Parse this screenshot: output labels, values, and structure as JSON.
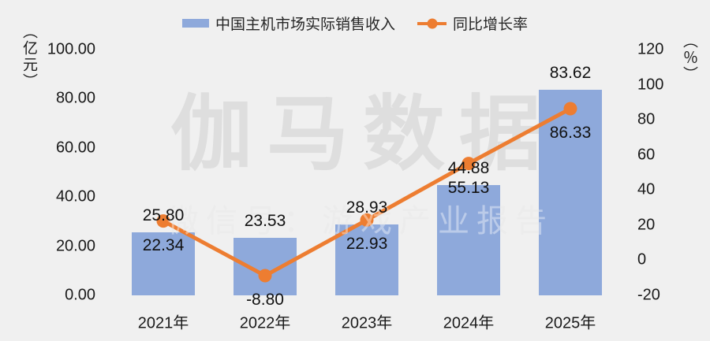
{
  "legend": {
    "revenue_label": "中国主机市场实际销售收入",
    "growth_label": "同比增长率"
  },
  "watermark": {
    "line1": "伽马数据",
    "line2": "微信号：游戏产业报告"
  },
  "colors": {
    "bar": "#8EA9DB",
    "line": "#ED7D31",
    "background": "#F0F0F0",
    "label_text": "#111111"
  },
  "chart_data": {
    "type": "bar+line combo",
    "categories": [
      "2021年",
      "2022年",
      "2023年",
      "2024年",
      "2025年"
    ],
    "series": [
      {
        "name": "中国主机市场实际销售收入",
        "type": "bar",
        "axis": "left",
        "unit": "亿元",
        "values": [
          25.8,
          23.53,
          28.93,
          44.88,
          83.62
        ]
      },
      {
        "name": "同比增长率",
        "type": "line",
        "axis": "right",
        "unit": "%",
        "values": [
          22.34,
          -8.8,
          22.93,
          55.13,
          86.33
        ]
      }
    ],
    "left_axis": {
      "label": "（亿元）",
      "min": 0,
      "max": 100,
      "tick_labels": [
        "100.00",
        "80.00",
        "60.00",
        "40.00",
        "20.00",
        "0.00"
      ]
    },
    "right_axis": {
      "label": "（％）",
      "min": -20,
      "max": 120,
      "tick_labels": [
        "120",
        "100",
        "80",
        "60",
        "40",
        "20",
        "0",
        "-20"
      ]
    },
    "grid": false,
    "legend_position": "top-center",
    "value_labels": "shown, 2 decimal places; bar labels above bars, line labels below markers"
  }
}
